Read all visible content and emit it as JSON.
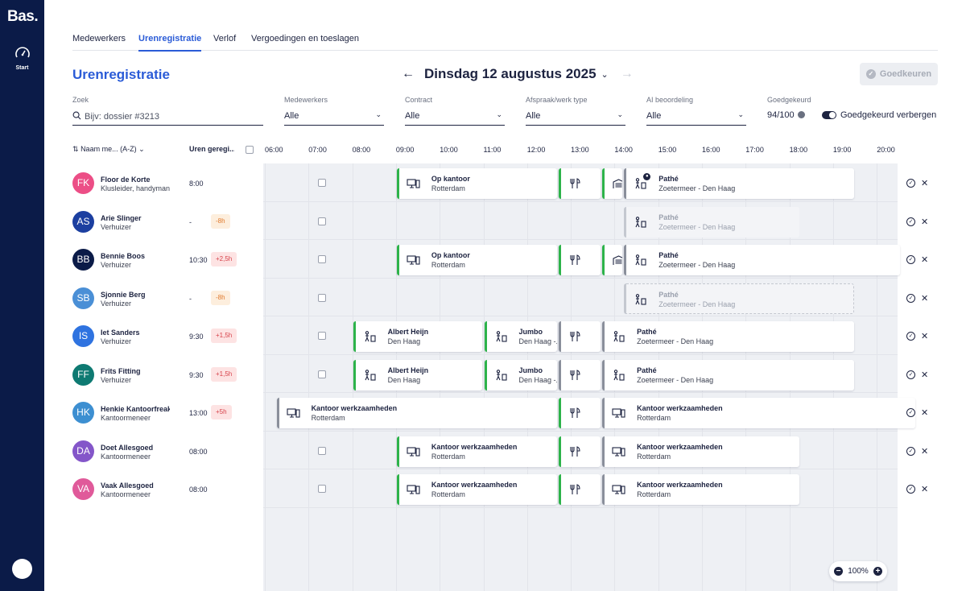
{
  "app": {
    "logo": "Bas.",
    "nav_start": "Start"
  },
  "tabs": [
    {
      "label": "Medewerkers"
    },
    {
      "label": "Urenregistratie"
    },
    {
      "label": "Verlof"
    },
    {
      "label": "Vergoedingen en toeslagen"
    }
  ],
  "page_title": "Urenregistratie",
  "date_nav": {
    "prev": "←",
    "date": "Dinsdag 12 augustus 2025",
    "caret": "⌄",
    "next": "→"
  },
  "approve_button": "Goedkeuren",
  "filters": {
    "search": {
      "label": "Zoek",
      "placeholder": "Bijv: dossier #3213"
    },
    "employees": {
      "label": "Medewerkers",
      "value": "Alle"
    },
    "contract": {
      "label": "Contract",
      "value": "Alle"
    },
    "appointment_type": {
      "label": "Afspraak/werk type",
      "value": "Alle"
    },
    "ai_review": {
      "label": "AI beoordeling",
      "value": "Alle"
    },
    "approved": {
      "label": "Goedgekeurd",
      "value": "94/100"
    },
    "hide_approved": "Goedgekeurd verbergen"
  },
  "columns": {
    "name": "Naam me... (A-Z)",
    "hours": "Uren geregi...",
    "sort_icon": "⇅"
  },
  "hours": [
    "06:00",
    "07:00",
    "08:00",
    "09:00",
    "10:00",
    "11:00",
    "12:00",
    "13:00",
    "14:00",
    "15:00",
    "16:00",
    "17:00",
    "18:00",
    "19:00",
    "20:00"
  ],
  "zoom": {
    "minus": "−",
    "value": "100%",
    "plus": "+"
  },
  "colors": {
    "sidebar": "#0b1b48",
    "accent": "#2a5bd7",
    "green": "#2db34a"
  },
  "employees": [
    {
      "initials": "FK",
      "name": "Floor de Korte",
      "role": "Klusleider, handyman",
      "hours": "8:00",
      "badge": "",
      "color": "#ec4e86",
      "blocks": [
        {
          "icon": "desktop-icon",
          "title": "Op kantoor",
          "sub": "Rotterdam",
          "style": "green",
          "start": 9.0,
          "end": 12.7
        },
        {
          "icon": "cutlery-icon",
          "title": "",
          "sub": "",
          "style": "green",
          "start": 12.7,
          "end": 13.7
        },
        {
          "icon": "garage-icon",
          "title": "",
          "sub": "",
          "style": "green",
          "start": 13.7,
          "end": 14.2
        },
        {
          "icon": "worker-icon",
          "title": "Pathé",
          "sub": "Zoetermeer - Den Haag",
          "style": "gray",
          "start": 14.2,
          "end": 19.5,
          "dot": true
        }
      ]
    },
    {
      "initials": "AS",
      "name": "Arie Slinger",
      "role": "Verhuizer",
      "hours": "-",
      "badge": "-8h",
      "badge_type": "neg",
      "color": "#1c3fa0",
      "blocks": [
        {
          "icon": "worker-icon",
          "title": "Pathé",
          "sub": "Zoetermeer - Den Haag",
          "style": "solidfade",
          "start": 14.2,
          "end": 18.25
        }
      ]
    },
    {
      "initials": "BB",
      "name": "Bennie Boos",
      "role": "Verhuizer",
      "hours": "10:30",
      "badge": "+2,5h",
      "badge_type": "pos",
      "color": "#0b1b48",
      "blocks": [
        {
          "icon": "desktop-icon",
          "title": "Op kantoor",
          "sub": "Rotterdam",
          "style": "green",
          "start": 9.0,
          "end": 12.7
        },
        {
          "icon": "cutlery-icon",
          "title": "",
          "sub": "",
          "style": "green",
          "start": 12.7,
          "end": 13.7
        },
        {
          "icon": "garage-icon",
          "title": "",
          "sub": "",
          "style": "green",
          "start": 13.7,
          "end": 14.2
        },
        {
          "icon": "worker-icon",
          "title": "Pathé",
          "sub": "Zoetermeer - Den Haag",
          "style": "gray",
          "start": 14.2,
          "end": 20.55
        }
      ]
    },
    {
      "initials": "SB",
      "name": "Sjonnie Berg",
      "role": "Verhuizer",
      "hours": "-",
      "badge": "-8h",
      "badge_type": "neg",
      "color": "#4a8fd6",
      "blocks": [
        {
          "icon": "worker-icon",
          "title": "Pathé",
          "sub": "Zoetermeer - Den Haag",
          "style": "faded",
          "start": 14.2,
          "end": 19.5
        }
      ]
    },
    {
      "initials": "IS",
      "name": "Iet Sanders",
      "role": "Verhuizer",
      "hours": "9:30",
      "badge": "+1,5h",
      "badge_type": "pos",
      "color": "#2f73e0",
      "blocks": [
        {
          "icon": "worker-icon",
          "title": "Albert Heijn",
          "sub": "Den Haag",
          "style": "green",
          "start": 8.0,
          "end": 11.0
        },
        {
          "icon": "worker-icon",
          "title": "Jumbo",
          "sub": "Den Haag -...",
          "style": "green",
          "start": 11.0,
          "end": 12.7
        },
        {
          "icon": "cutlery-icon",
          "title": "",
          "sub": "",
          "style": "gray",
          "start": 12.7,
          "end": 13.7
        },
        {
          "icon": "worker-icon",
          "title": "Pathé",
          "sub": "Zoetermeer - Den Haag",
          "style": "gray",
          "start": 13.7,
          "end": 19.5
        }
      ]
    },
    {
      "initials": "FF",
      "name": "Frits Fitting",
      "role": "Verhuizer",
      "hours": "9:30",
      "badge": "+1,5h",
      "badge_type": "pos",
      "color": "#0e7a72",
      "blocks": [
        {
          "icon": "worker-icon",
          "title": "Albert Heijn",
          "sub": "Den Haag",
          "style": "green",
          "start": 8.0,
          "end": 11.0
        },
        {
          "icon": "worker-icon",
          "title": "Jumbo",
          "sub": "Den Haag -...",
          "style": "green",
          "start": 11.0,
          "end": 12.7
        },
        {
          "icon": "cutlery-icon",
          "title": "",
          "sub": "",
          "style": "gray",
          "start": 12.7,
          "end": 13.7
        },
        {
          "icon": "worker-icon",
          "title": "Pathé",
          "sub": "Zoetermeer - Den Haag",
          "style": "gray",
          "start": 13.7,
          "end": 19.5
        }
      ]
    },
    {
      "initials": "HK",
      "name": "Henkie Kantoorfreak",
      "role": "Kantoormeneer",
      "hours": "13:00",
      "badge": "+5h",
      "badge_type": "pos",
      "color": "#3d8fd1",
      "blocks": [
        {
          "icon": "desktop-icon",
          "title": "Kantoor werkzaamheden",
          "sub": "Rotterdam",
          "style": "gray",
          "start": 6.25,
          "end": 12.7
        },
        {
          "icon": "cutlery-icon",
          "title": "",
          "sub": "",
          "style": "green",
          "start": 12.7,
          "end": 13.7
        },
        {
          "icon": "desktop-icon",
          "title": "Kantoor werkzaamheden",
          "sub": "Rotterdam",
          "style": "gray",
          "start": 13.7,
          "end": 20.9
        }
      ]
    },
    {
      "initials": "DA",
      "name": "Doet Allesgoed",
      "role": "Kantoormeneer",
      "hours": "08:00",
      "badge": "",
      "color": "#8456c9",
      "blocks": [
        {
          "icon": "desktop-icon",
          "title": "Kantoor werkzaamheden",
          "sub": "Rotterdam",
          "style": "green",
          "start": 9.0,
          "end": 12.7
        },
        {
          "icon": "cutlery-icon",
          "title": "",
          "sub": "",
          "style": "green",
          "start": 12.7,
          "end": 13.7
        },
        {
          "icon": "desktop-icon",
          "title": "Kantoor werkzaamheden",
          "sub": "Rotterdam",
          "style": "gray",
          "start": 13.7,
          "end": 18.25
        }
      ]
    },
    {
      "initials": "VA",
      "name": "Vaak Allesgoed",
      "role": "Kantoormeneer",
      "hours": "08:00",
      "badge": "",
      "color": "#e05a9a",
      "blocks": [
        {
          "icon": "desktop-icon",
          "title": "Kantoor werkzaamheden",
          "sub": "Rotterdam",
          "style": "green",
          "start": 9.0,
          "end": 12.7
        },
        {
          "icon": "cutlery-icon",
          "title": "",
          "sub": "",
          "style": "green",
          "start": 12.7,
          "end": 13.7
        },
        {
          "icon": "desktop-icon",
          "title": "Kantoor werkzaamheden",
          "sub": "Rotterdam",
          "style": "gray",
          "start": 13.7,
          "end": 18.25
        }
      ]
    }
  ]
}
